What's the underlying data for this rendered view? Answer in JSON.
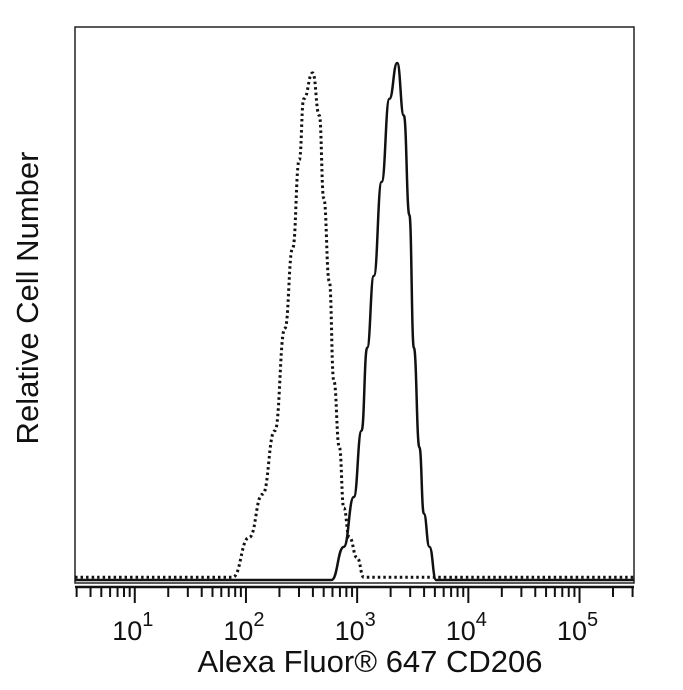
{
  "chart_data": {
    "type": "line",
    "title": "",
    "xlabel": "Alexa Fluor® 647 CD206",
    "ylabel": "Relative Cell Number",
    "xscale": "log",
    "xlim": [
      2.9,
      309000
    ],
    "ylim": [
      0,
      100
    ],
    "grid": false,
    "x_ticks": [
      {
        "base": "10",
        "exp": "1",
        "value": 10
      },
      {
        "base": "10",
        "exp": "2",
        "value": 100
      },
      {
        "base": "10",
        "exp": "3",
        "value": 1000
      },
      {
        "base": "10",
        "exp": "4",
        "value": 10000
      },
      {
        "base": "10",
        "exp": "5",
        "value": 100000
      }
    ],
    "series": [
      {
        "style": "dotted",
        "color": "#111111",
        "x": [
          2.9,
          60,
          76,
          107,
          141,
          182,
          224,
          263,
          302,
          331,
          398,
          457,
          501,
          562,
          617,
          692,
          759,
          851,
          1000,
          1148,
          309000
        ],
        "y": [
          0.5,
          0.5,
          0.5,
          7.7,
          15.5,
          27,
          45.5,
          60,
          76,
          87,
          91.7,
          84,
          69,
          54,
          36,
          24,
          13,
          7.7,
          4,
          0.5,
          0.5
        ]
      },
      {
        "style": "solid",
        "color": "#111111",
        "x": [
          2.9,
          589,
          759,
          933,
          1096,
          1230,
          1413,
          1660,
          1950,
          2291,
          2630,
          2951,
          3236,
          3631,
          3981,
          4467,
          5129,
          309000
        ],
        "y": [
          0,
          0,
          6,
          15,
          27,
          42,
          55,
          72,
          87,
          93.5,
          84,
          66,
          42,
          24,
          12,
          6,
          0,
          0
        ]
      }
    ]
  }
}
